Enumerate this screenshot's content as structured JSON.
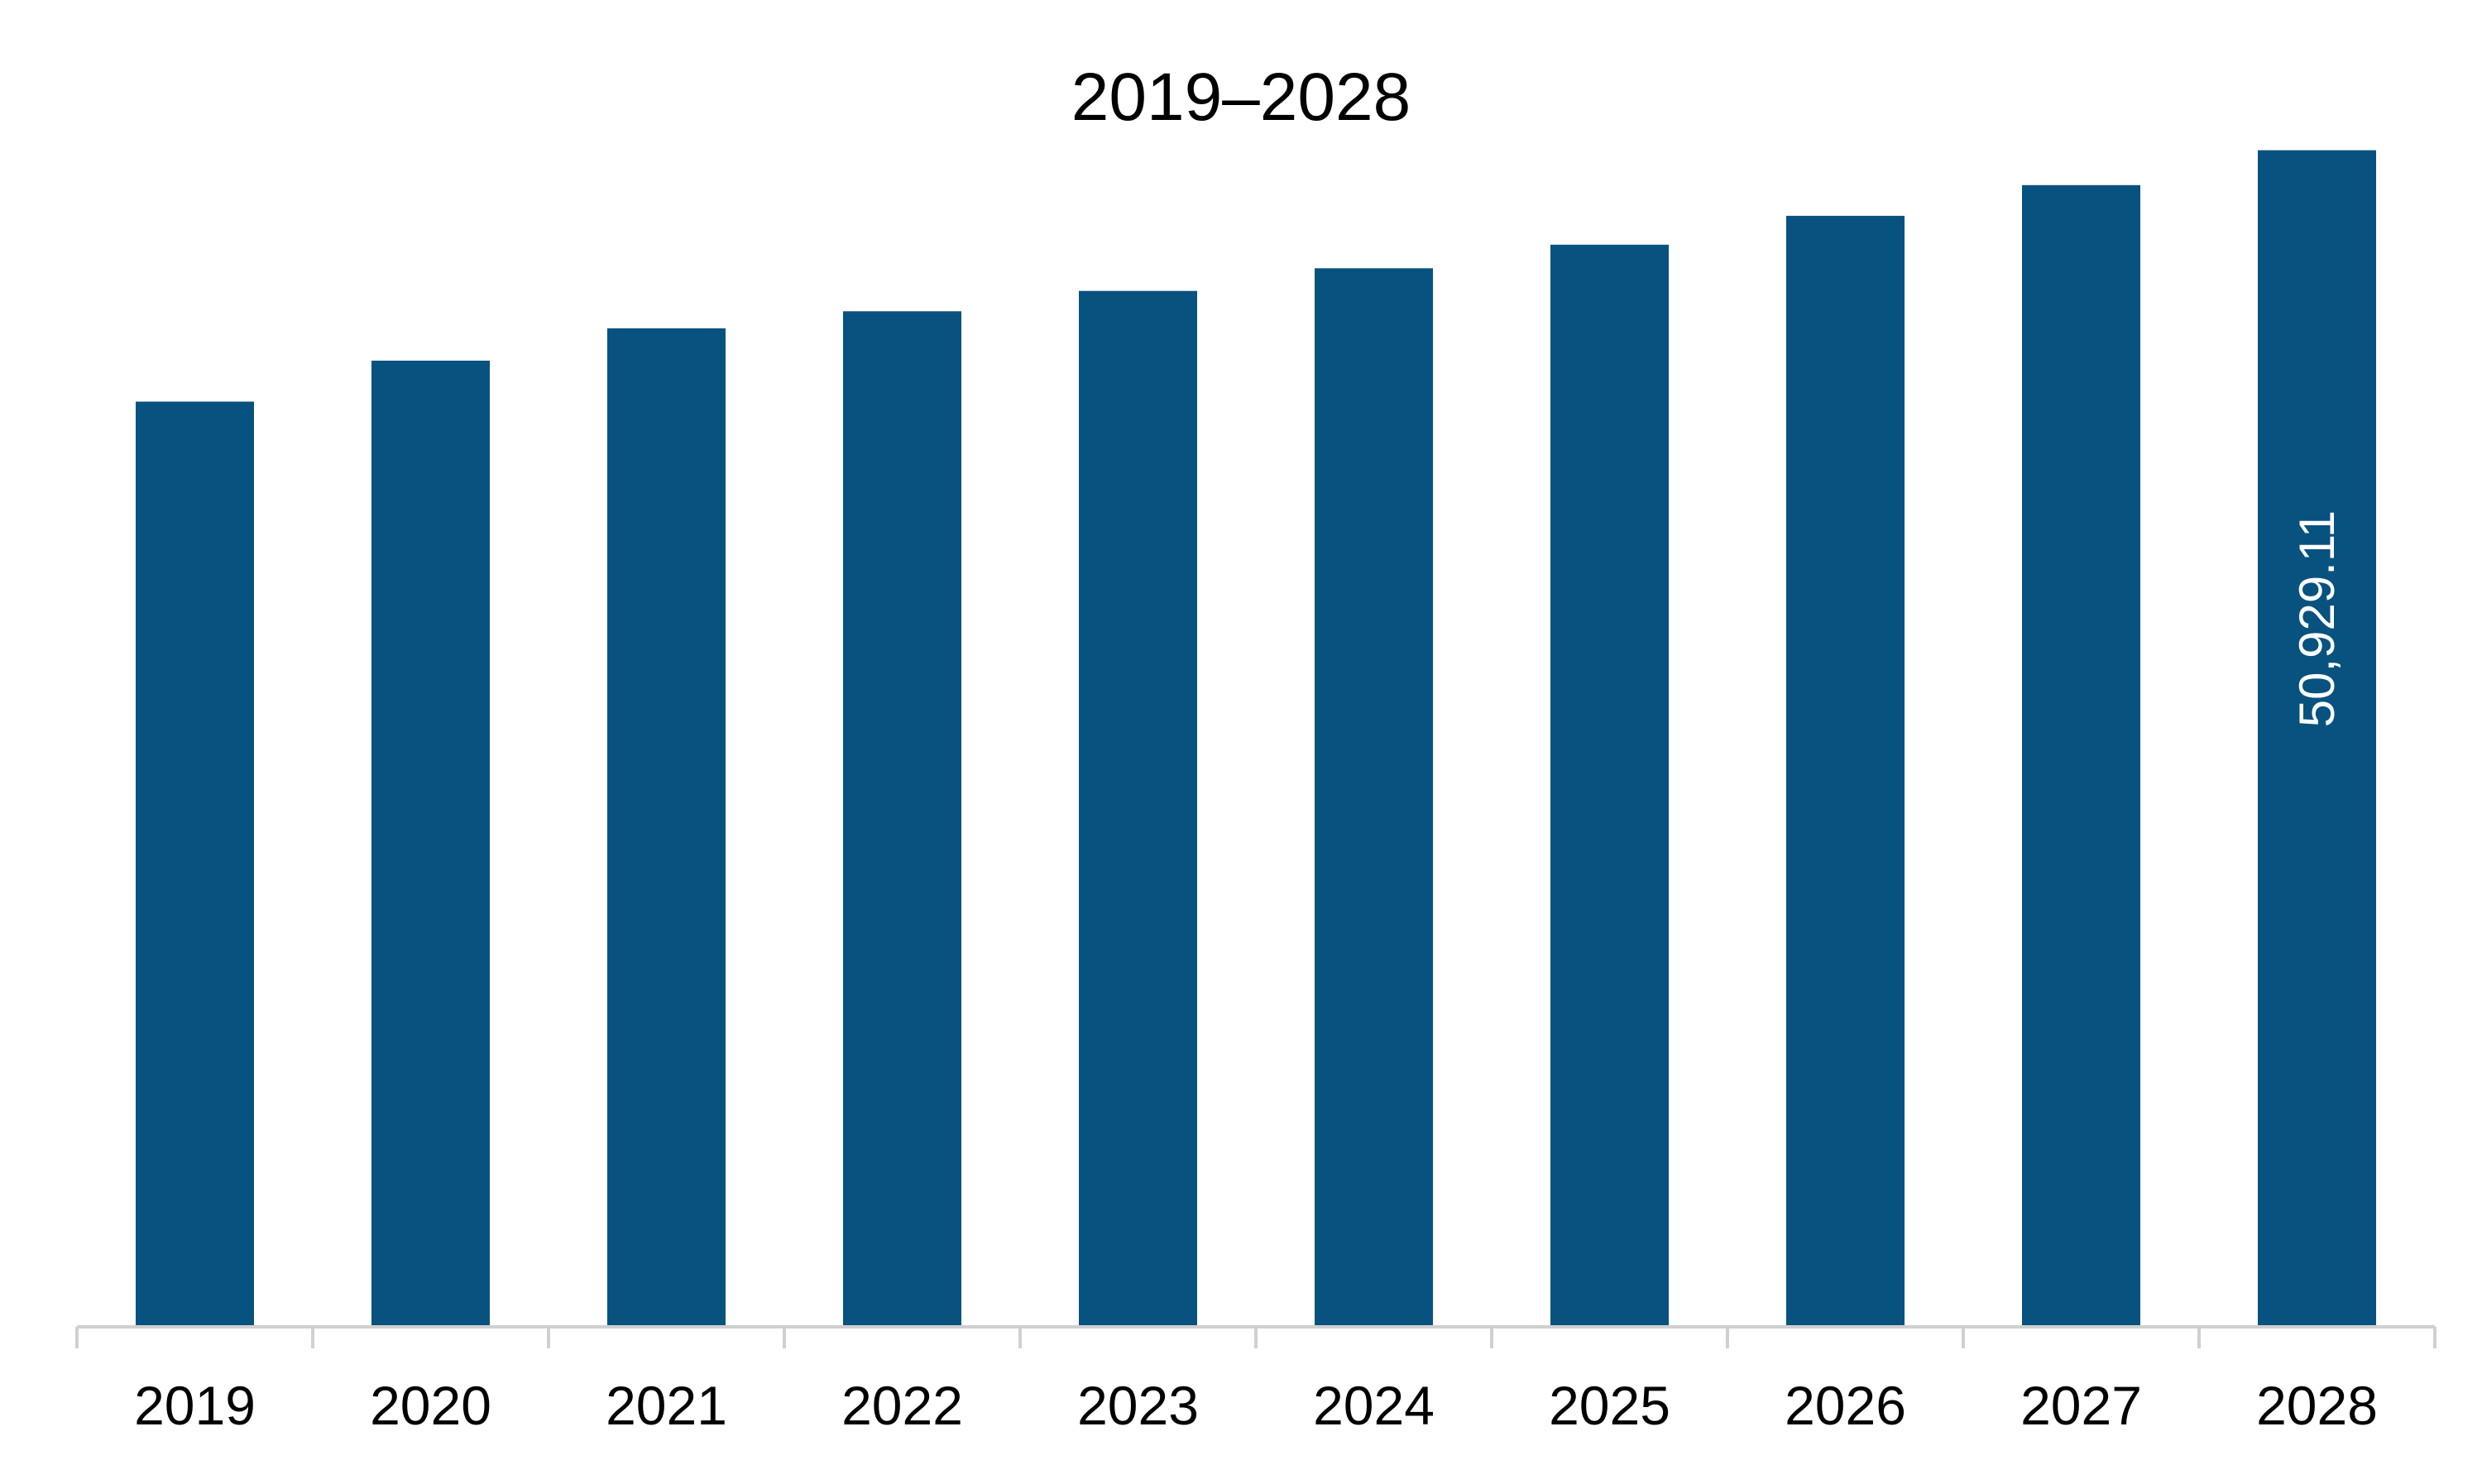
{
  "chart_data": {
    "type": "bar",
    "title": "2019–2028",
    "categories": [
      "2019",
      "2020",
      "2021",
      "2022",
      "2023",
      "2024",
      "2025",
      "2026",
      "2027",
      "2028"
    ],
    "values": [
      40050,
      41820,
      43220,
      43960,
      44840,
      45820,
      46840,
      48090,
      49420,
      50929.11
    ],
    "data_labels": [
      null,
      null,
      null,
      null,
      null,
      null,
      null,
      null,
      null,
      "50,929.11"
    ],
    "ylim": [
      0,
      56000
    ],
    "xlabel": "",
    "ylabel": "",
    "grid": false,
    "legend": "none",
    "colors": {
      "bar": "#08527F",
      "axis": "#D0D0D0",
      "text": "#000000",
      "data_label": "#FFFFFF"
    }
  }
}
